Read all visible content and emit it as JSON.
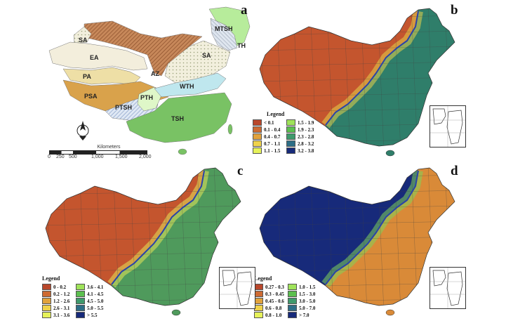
{
  "panels": {
    "a": {
      "label": "a"
    },
    "b": {
      "label": "b"
    },
    "c": {
      "label": "c"
    },
    "d": {
      "label": "d"
    }
  },
  "zones": [
    "SA",
    "EA",
    "PA",
    "PSA",
    "AZ",
    "PTSH",
    "PTH",
    "TSH",
    "WTH",
    "SA",
    "MTSH",
    "TH"
  ],
  "scale": {
    "title": "Kilometers",
    "ticks": [
      "0",
      "250",
      "500",
      "1,000",
      "1,500",
      "2,000"
    ]
  },
  "legends": {
    "b": {
      "title": "Legend",
      "items": [
        {
          "label": "< 0.1",
          "color": "#b9472b"
        },
        {
          "label": "0.1 - 0.4",
          "color": "#cd6a32"
        },
        {
          "label": "0.4 - 0.7",
          "color": "#e1a23c"
        },
        {
          "label": "0.7 - 1.1",
          "color": "#efd24a"
        },
        {
          "label": "1.1 - 1.5",
          "color": "#e6f25a"
        },
        {
          "label": "1.5 - 1.9",
          "color": "#9fe35a"
        },
        {
          "label": "1.9 - 2.3",
          "color": "#5cc04f"
        },
        {
          "label": "2.3 - 2.8",
          "color": "#3f9a6c"
        },
        {
          "label": "2.8 - 3.2",
          "color": "#2d6e86"
        },
        {
          "label": "3.2 - 3.8",
          "color": "#172a7a"
        }
      ]
    },
    "c": {
      "title": "Legend",
      "items": [
        {
          "label": "0 - 0.2",
          "color": "#b9472b"
        },
        {
          "label": "0.2 - 1.2",
          "color": "#cd6a32"
        },
        {
          "label": "1.2 - 2.6",
          "color": "#e1a23c"
        },
        {
          "label": "2.6 - 3.1",
          "color": "#efd24a"
        },
        {
          "label": "3.1 - 3.6",
          "color": "#e6f25a"
        },
        {
          "label": "3.6 - 4.1",
          "color": "#9fe35a"
        },
        {
          "label": "4.1 - 4.5",
          "color": "#5cc04f"
        },
        {
          "label": "4.5 - 5.0",
          "color": "#3f9a6c"
        },
        {
          "label": "5.0 - 5.5",
          "color": "#2d6e86"
        },
        {
          "label": "> 5.5",
          "color": "#172a7a"
        }
      ]
    },
    "d": {
      "title": "Legend",
      "items": [
        {
          "label": "0.27 - 0.3",
          "color": "#b9472b"
        },
        {
          "label": "0.3 - 0.45",
          "color": "#cd6a32"
        },
        {
          "label": "0.45 - 0.6",
          "color": "#e1a23c"
        },
        {
          "label": "0.6 - 0.8",
          "color": "#efd24a"
        },
        {
          "label": "0.8 - 1.0",
          "color": "#e6f25a"
        },
        {
          "label": "1.0 - 1.5",
          "color": "#9fe35a"
        },
        {
          "label": "1.5 - 3.0",
          "color": "#5cc04f"
        },
        {
          "label": "3.0 - 5.0",
          "color": "#3f9a6c"
        },
        {
          "label": "5.0 - 7.0",
          "color": "#2d6e86"
        },
        {
          "label": "> 7.0",
          "color": "#172a7a"
        }
      ]
    }
  }
}
